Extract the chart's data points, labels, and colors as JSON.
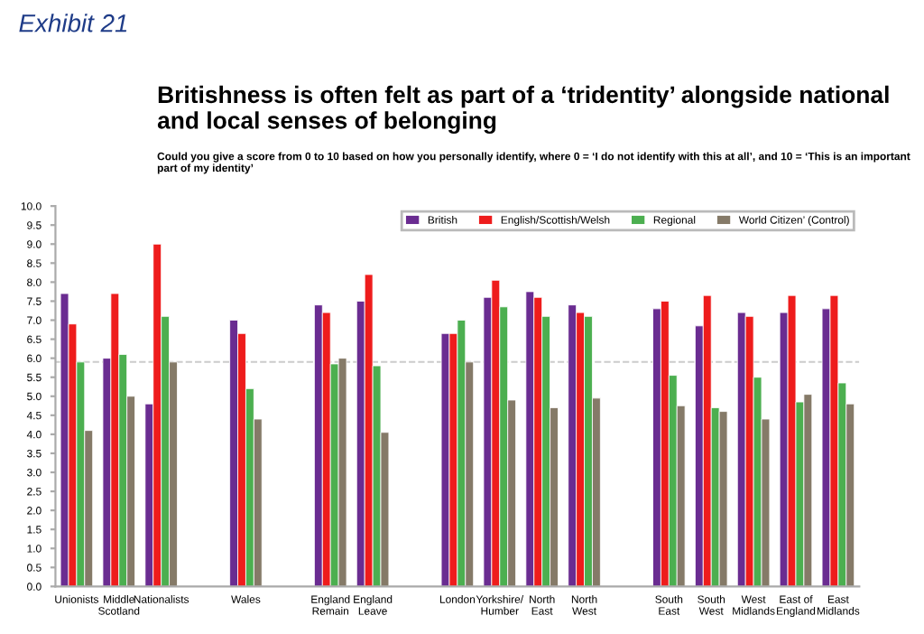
{
  "chart_data": {
    "type": "bar",
    "title": "Britishness is often felt as part of a ‘tridentity’ alongside national and local senses of belonging",
    "subtitle": "Could you give a score from 0 to 10 based on how you personally identify, where 0 = ‘I do not identify with this at all’, and 10 = ‘This is an important part of my identity’",
    "annotations": [
      "Exhibit 21"
    ],
    "categories": [
      "Unionists",
      "Middle\nScotland",
      "Nationalists",
      null,
      "Wales",
      null,
      "England\nRemain",
      "England\nLeave",
      null,
      "London",
      "Yorkshire/\nHumber",
      "North\nEast",
      "North\nWest",
      null,
      "South\nEast",
      "South\nWest",
      "West\nMidlands",
      "East of\nEngland",
      "East\nMidlands"
    ],
    "series": [
      {
        "name": "British",
        "color": "#6a2c91",
        "values": [
          7.7,
          6.0,
          4.8,
          null,
          7.0,
          null,
          7.4,
          7.5,
          null,
          6.65,
          7.6,
          7.75,
          7.4,
          null,
          7.3,
          6.85,
          7.2,
          7.2,
          7.3
        ]
      },
      {
        "name": "English/Scottish/Welsh",
        "color": "#ee1c1c",
        "values": [
          6.9,
          7.7,
          9.0,
          null,
          6.65,
          null,
          7.2,
          8.2,
          null,
          6.65,
          8.05,
          7.6,
          7.2,
          null,
          7.5,
          7.65,
          7.1,
          7.65,
          7.65
        ]
      },
      {
        "name": "Regional",
        "color": "#4caf50",
        "values": [
          5.9,
          6.1,
          7.1,
          null,
          5.2,
          null,
          5.85,
          5.8,
          null,
          7.0,
          7.35,
          7.1,
          7.1,
          null,
          5.55,
          4.7,
          5.5,
          4.85,
          5.35
        ]
      },
      {
        "name": "World Citizen’ (Control)",
        "color": "#857a68",
        "values": [
          4.1,
          5.0,
          5.9,
          null,
          4.4,
          null,
          6.0,
          4.05,
          null,
          5.9,
          4.9,
          4.7,
          4.95,
          null,
          4.75,
          4.6,
          4.4,
          5.05,
          4.8
        ]
      }
    ],
    "ylim": [
      0,
      10
    ],
    "yticks": [
      {
        "value": 0,
        "label": "0.0"
      },
      {
        "value": 0.5,
        "label": "0.5"
      },
      {
        "value": 1,
        "label": "1.0"
      },
      {
        "value": 1.5,
        "label": "1.5"
      },
      {
        "value": 2,
        "label": "2.0"
      },
      {
        "value": 2.5,
        "label": "2.5"
      },
      {
        "value": 3,
        "label": "3.0"
      },
      {
        "value": 3.5,
        "label": "3.5"
      },
      {
        "value": 4,
        "label": "4.0"
      },
      {
        "value": 4.5,
        "label": "4.5"
      },
      {
        "value": 5,
        "label": "5.0"
      },
      {
        "value": 5.5,
        "label": "5.5"
      },
      {
        "value": 6,
        "label": "6.0"
      },
      {
        "value": 6.5,
        "label": "6.5"
      },
      {
        "value": 7,
        "label": "7.0"
      },
      {
        "value": 7.5,
        "label": "7.5"
      },
      {
        "value": 8,
        "label": "8.0"
      },
      {
        "value": 8.5,
        "label": "8.5"
      },
      {
        "value": 9,
        "label": "9.0"
      },
      {
        "value": 9.5,
        "label": "9.5"
      },
      {
        "value": 10,
        "label": "10.0"
      }
    ],
    "ref_lines": [
      {
        "axis": "y",
        "value": 5.9,
        "color": "#cccccc",
        "line_style": "dashed"
      }
    ],
    "grid": false,
    "legend": "top right"
  }
}
